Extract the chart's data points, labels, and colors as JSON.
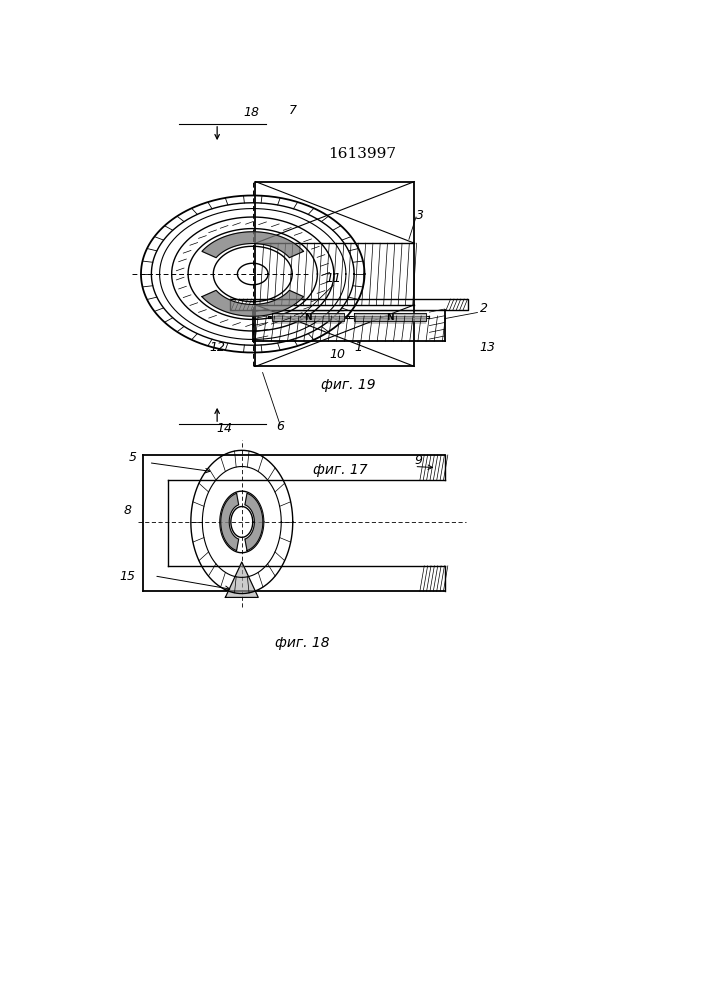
{
  "title": "1613997",
  "fig17_label": "фиг. 17",
  "fig18_label": "фиг. 18",
  "fig19_label": "фиг. 19",
  "bg_color": "#ffffff",
  "line_color": "#000000"
}
